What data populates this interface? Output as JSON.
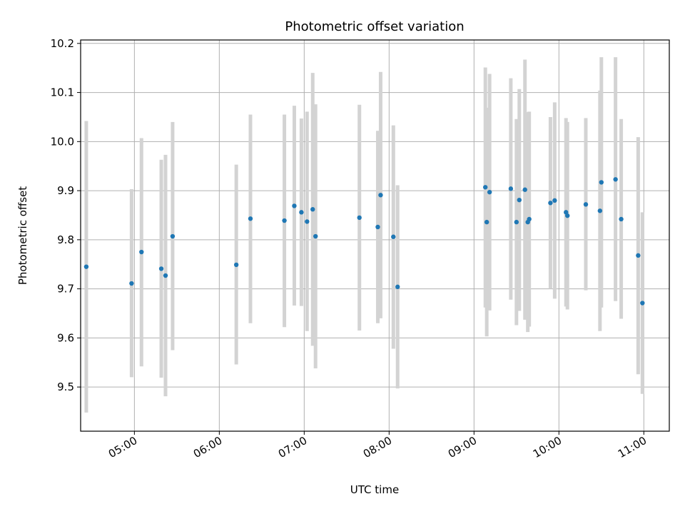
{
  "chart_data": {
    "type": "scatter",
    "title": "Photometric offset variation",
    "xlabel": "UTC time",
    "ylabel": "Photometric offset",
    "xlim": [
      "04:22",
      "11:18"
    ],
    "ylim": [
      9.41,
      10.207
    ],
    "x_ticks": [
      "05:00",
      "06:00",
      "07:00",
      "08:00",
      "09:00",
      "10:00",
      "11:00"
    ],
    "y_ticks": [
      "9.5",
      "9.6",
      "9.7",
      "9.8",
      "9.9",
      "10.0",
      "10.1",
      "10.2"
    ],
    "grid": true,
    "error_bar_color": "#d3d3d3",
    "marker_color": "#1f77b4",
    "points": [
      {
        "x": "04:26",
        "y": 9.745,
        "yerr_low": 9.448,
        "yerr_high": 10.042
      },
      {
        "x": "04:58",
        "y": 9.711,
        "yerr_low": 9.52,
        "yerr_high": 9.903
      },
      {
        "x": "05:05",
        "y": 9.775,
        "yerr_low": 9.542,
        "yerr_high": 10.007
      },
      {
        "x": "05:19",
        "y": 9.741,
        "yerr_low": 9.519,
        "yerr_high": 9.963
      },
      {
        "x": "05:22",
        "y": 9.727,
        "yerr_low": 9.481,
        "yerr_high": 9.973
      },
      {
        "x": "05:27",
        "y": 9.807,
        "yerr_low": 9.575,
        "yerr_high": 10.04
      },
      {
        "x": "06:12",
        "y": 9.749,
        "yerr_low": 9.546,
        "yerr_high": 9.953
      },
      {
        "x": "06:22",
        "y": 9.843,
        "yerr_low": 9.63,
        "yerr_high": 10.055
      },
      {
        "x": "06:46",
        "y": 9.839,
        "yerr_low": 9.622,
        "yerr_high": 10.055
      },
      {
        "x": "06:53",
        "y": 9.869,
        "yerr_low": 9.666,
        "yerr_high": 10.073
      },
      {
        "x": "06:58",
        "y": 9.856,
        "yerr_low": 9.665,
        "yerr_high": 10.047
      },
      {
        "x": "07:02",
        "y": 9.837,
        "yerr_low": 9.614,
        "yerr_high": 10.061
      },
      {
        "x": "07:06",
        "y": 9.862,
        "yerr_low": 9.584,
        "yerr_high": 10.14
      },
      {
        "x": "07:08",
        "y": 9.807,
        "yerr_low": 9.538,
        "yerr_high": 10.076
      },
      {
        "x": "07:39",
        "y": 9.845,
        "yerr_low": 9.615,
        "yerr_high": 10.075
      },
      {
        "x": "07:52",
        "y": 9.826,
        "yerr_low": 9.63,
        "yerr_high": 10.022
      },
      {
        "x": "07:54",
        "y": 9.891,
        "yerr_low": 9.64,
        "yerr_high": 10.142
      },
      {
        "x": "08:03",
        "y": 9.806,
        "yerr_low": 9.578,
        "yerr_high": 10.033
      },
      {
        "x": "08:06",
        "y": 9.704,
        "yerr_low": 9.497,
        "yerr_high": 9.911
      },
      {
        "x": "09:08",
        "y": 9.907,
        "yerr_low": 9.662,
        "yerr_high": 10.151
      },
      {
        "x": "09:09",
        "y": 9.836,
        "yerr_low": 9.603,
        "yerr_high": 10.069
      },
      {
        "x": "09:11",
        "y": 9.897,
        "yerr_low": 9.656,
        "yerr_high": 10.138
      },
      {
        "x": "09:26",
        "y": 9.904,
        "yerr_low": 9.678,
        "yerr_high": 10.129
      },
      {
        "x": "09:30",
        "y": 9.836,
        "yerr_low": 9.626,
        "yerr_high": 10.046
      },
      {
        "x": "09:32",
        "y": 9.881,
        "yerr_low": 9.655,
        "yerr_high": 10.107
      },
      {
        "x": "09:36",
        "y": 9.902,
        "yerr_low": 9.637,
        "yerr_high": 10.167
      },
      {
        "x": "09:38",
        "y": 9.836,
        "yerr_low": 9.612,
        "yerr_high": 10.06
      },
      {
        "x": "09:39",
        "y": 9.842,
        "yerr_low": 9.623,
        "yerr_high": 10.061
      },
      {
        "x": "09:54",
        "y": 9.875,
        "yerr_low": 9.7,
        "yerr_high": 10.05
      },
      {
        "x": "09:57",
        "y": 9.88,
        "yerr_low": 9.68,
        "yerr_high": 10.08
      },
      {
        "x": "10:05",
        "y": 9.856,
        "yerr_low": 9.664,
        "yerr_high": 10.048
      },
      {
        "x": "10:06",
        "y": 9.849,
        "yerr_low": 9.658,
        "yerr_high": 10.04
      },
      {
        "x": "10:19",
        "y": 9.872,
        "yerr_low": 9.697,
        "yerr_high": 10.048
      },
      {
        "x": "10:29",
        "y": 9.859,
        "yerr_low": 9.614,
        "yerr_high": 10.104
      },
      {
        "x": "10:30",
        "y": 9.917,
        "yerr_low": 9.662,
        "yerr_high": 10.172
      },
      {
        "x": "10:40",
        "y": 9.923,
        "yerr_low": 9.675,
        "yerr_high": 10.172
      },
      {
        "x": "10:44",
        "y": 9.842,
        "yerr_low": 9.639,
        "yerr_high": 10.046
      },
      {
        "x": "10:56",
        "y": 9.768,
        "yerr_low": 9.526,
        "yerr_high": 10.009
      },
      {
        "x": "10:59",
        "y": 9.671,
        "yerr_low": 9.486,
        "yerr_high": 9.856
      }
    ]
  }
}
